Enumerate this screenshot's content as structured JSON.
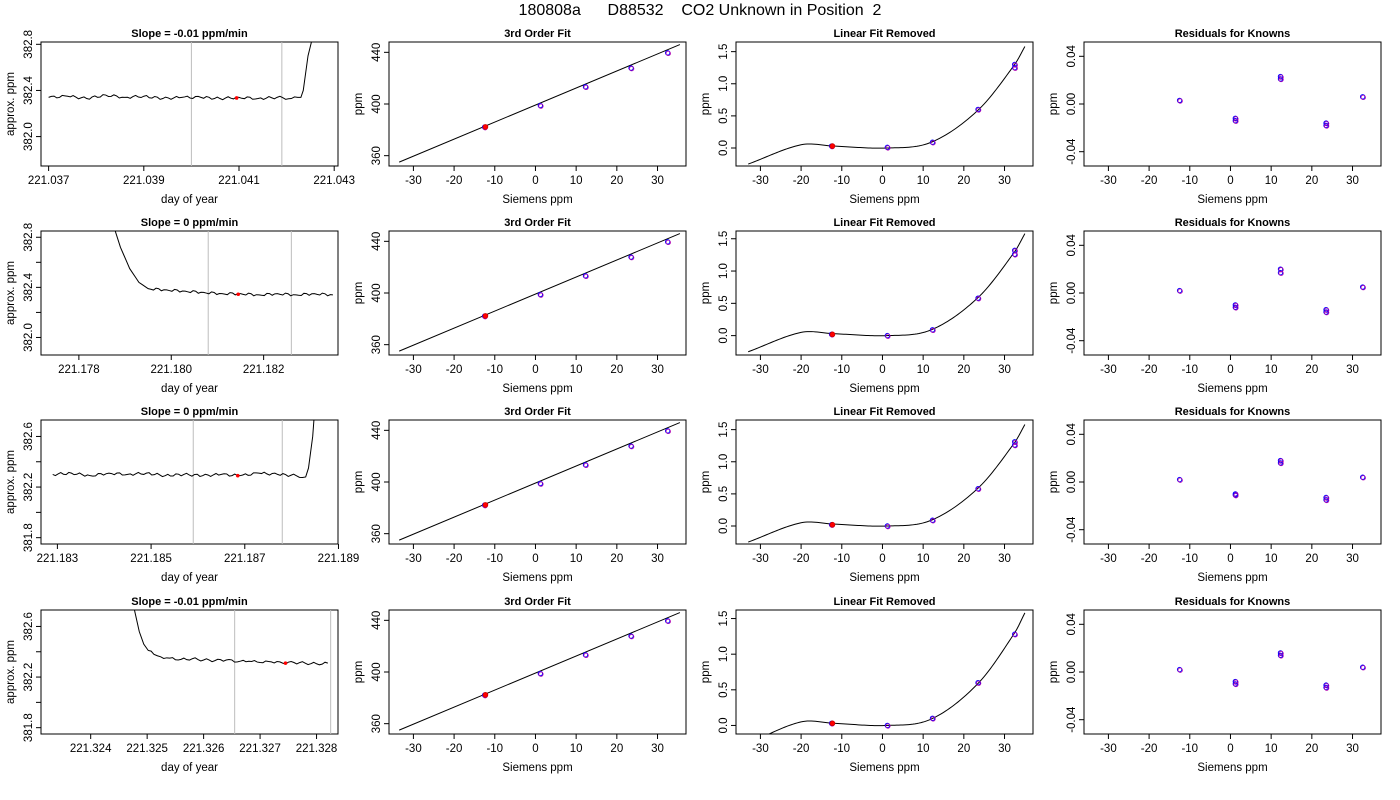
{
  "figure": {
    "title": "180808a      D88532    CO2 Unknown in Position  2"
  },
  "chart_data": [
    {
      "type": "line",
      "panel": "trace",
      "row": 1,
      "title": "Slope =  -0.01  ppm/min",
      "xlabel": "day of year",
      "ylabel": "approx. ppm",
      "xlim": [
        221.03684,
        221.04308
      ],
      "ylim": [
        381.745,
        382.82
      ],
      "xticks": [
        221.037,
        221.039,
        221.041,
        221.043
      ],
      "yticks": [
        382.0,
        382.4,
        382.8
      ],
      "series": [
        {
          "role": "trace",
          "x": [
            221.037,
            221.0374,
            221.0378,
            221.0382,
            221.0386,
            221.039,
            221.0394,
            221.0398,
            221.0402,
            221.0406,
            221.041,
            221.0414,
            221.0418,
            221.0421,
            221.0423,
            221.04235,
            221.04245,
            221.0426
          ],
          "y": [
            382.34,
            382.35,
            382.33,
            382.36,
            382.34,
            382.35,
            382.33,
            382.34,
            382.34,
            382.33,
            382.34,
            382.33,
            382.34,
            382.33,
            382.34,
            382.4,
            382.7,
            382.95
          ]
        }
      ],
      "markers": [
        {
          "x": 221.04095,
          "y": 382.335
        }
      ],
      "vlines": [
        221.04,
        221.0419
      ]
    },
    {
      "type": "scatter",
      "panel": "fit",
      "row": 1,
      "title": "3rd Order Fit",
      "xlabel": "Siemens ppm",
      "ylabel": "ppm",
      "xlim": [
        -36,
        37
      ],
      "ylim": [
        352,
        448
      ],
      "xticks": [
        -30,
        -20,
        -10,
        0,
        10,
        20,
        30
      ],
      "yticks": [
        360,
        400,
        440
      ],
      "series": [
        {
          "role": "fit-line",
          "x": [
            -33.5,
            35.5
          ],
          "y": [
            355,
            446
          ]
        },
        {
          "role": "knowns",
          "x": [
            -12.5,
            1.2,
            12.3,
            23.5,
            32.5
          ],
          "y": [
            382.1,
            398.8,
            413.3,
            427.8,
            439.6
          ]
        },
        {
          "role": "unknown",
          "x": [
            -12.3
          ],
          "y": [
            382.3
          ]
        }
      ]
    },
    {
      "type": "scatter",
      "panel": "linear-removed",
      "row": 1,
      "title": "Linear Fit Removed",
      "xlabel": "Siemens ppm",
      "ylabel": "ppm",
      "xlim": [
        -36,
        37
      ],
      "ylim": [
        -0.28,
        1.65
      ],
      "xticks": [
        -30,
        -20,
        -10,
        0,
        10,
        20,
        30
      ],
      "yticks": [
        0.0,
        0.5,
        1.0,
        1.5
      ],
      "curve": {
        "x0": -33,
        "x1": 35
      },
      "series": [
        {
          "role": "knowns",
          "x": [
            -12.5,
            1.2,
            12.3,
            23.5,
            32.5,
            32.5
          ],
          "y": [
            0.03,
            0.01,
            0.09,
            0.6,
            1.3,
            1.25
          ]
        },
        {
          "role": "unknown",
          "x": [
            -12.3
          ],
          "y": [
            0.03
          ]
        }
      ]
    },
    {
      "type": "scatter",
      "panel": "residuals",
      "row": 1,
      "title": "Residuals for Knowns",
      "xlabel": "Siemens ppm",
      "ylabel": "ppm",
      "xlim": [
        -36,
        37
      ],
      "ylim": [
        -0.052,
        0.052
      ],
      "xticks": [
        -30,
        -20,
        -10,
        0,
        10,
        20,
        30
      ],
      "yticks": [
        -0.04,
        0.0,
        0.04
      ],
      "series": [
        {
          "role": "knowns",
          "x": [
            -12.5,
            1.2,
            1.2,
            12.3,
            12.3,
            23.5,
            23.5,
            32.5
          ],
          "y": [
            0.003,
            -0.012,
            -0.014,
            0.023,
            0.021,
            -0.016,
            -0.018,
            0.006
          ]
        }
      ]
    },
    {
      "type": "line",
      "panel": "trace",
      "row": 2,
      "title": "Slope =  0  ppm/min",
      "xlabel": "day of year",
      "ylabel": "approx. ppm",
      "xlim": [
        221.17718,
        221.18361
      ],
      "ylim": [
        381.86,
        382.85
      ],
      "xticks": [
        221.178,
        221.18,
        221.182
      ],
      "ytick_labels_shown": [
        382.0,
        382.4,
        382.8
      ],
      "yticks": [
        382.0,
        382.2,
        382.4,
        382.6,
        382.8
      ],
      "series": [
        {
          "role": "trace",
          "x": [
            221.1787,
            221.1789,
            221.1791,
            221.1793,
            221.1795,
            221.1799,
            221.1803,
            221.1807,
            221.1811,
            221.1815,
            221.1819,
            221.1823,
            221.1827,
            221.1831,
            221.1835
          ],
          "y": [
            382.95,
            382.72,
            382.55,
            382.44,
            382.39,
            382.38,
            382.37,
            382.36,
            382.35,
            382.35,
            382.34,
            382.35,
            382.34,
            382.35,
            382.34
          ]
        }
      ],
      "markers": [
        {
          "x": 221.18145,
          "y": 382.345
        }
      ],
      "vlines": [
        221.1808,
        221.1826
      ]
    },
    {
      "type": "scatter",
      "panel": "fit",
      "row": 2,
      "title": "3rd Order Fit",
      "xlabel": "Siemens ppm",
      "ylabel": "ppm",
      "xlim": [
        -36,
        37
      ],
      "ylim": [
        352,
        448
      ],
      "xticks": [
        -30,
        -20,
        -10,
        0,
        10,
        20,
        30
      ],
      "yticks": [
        360,
        400,
        440
      ],
      "series": [
        {
          "role": "fit-line",
          "x": [
            -33.5,
            35.5
          ],
          "y": [
            355,
            446
          ]
        },
        {
          "role": "knowns",
          "x": [
            -12.5,
            1.2,
            12.3,
            23.5,
            32.5
          ],
          "y": [
            382.1,
            398.8,
            413.3,
            427.8,
            439.6
          ]
        },
        {
          "role": "unknown",
          "x": [
            -12.3
          ],
          "y": [
            382.3
          ]
        }
      ]
    },
    {
      "type": "scatter",
      "panel": "linear-removed",
      "row": 2,
      "title": "Linear Fit Removed",
      "xlabel": "Siemens ppm",
      "ylabel": "ppm",
      "xlim": [
        -36,
        37
      ],
      "ylim": [
        -0.3,
        1.62
      ],
      "xticks": [
        -30,
        -20,
        -10,
        0,
        10,
        20,
        30
      ],
      "yticks": [
        0.0,
        0.5,
        1.0,
        1.5
      ],
      "curve": {
        "x0": -33,
        "x1": 35
      },
      "series": [
        {
          "role": "knowns",
          "x": [
            -12.5,
            1.2,
            12.3,
            23.5,
            32.5,
            32.5
          ],
          "y": [
            0.02,
            0.0,
            0.09,
            0.58,
            1.32,
            1.26
          ]
        },
        {
          "role": "unknown",
          "x": [
            -12.3
          ],
          "y": [
            0.02
          ]
        }
      ]
    },
    {
      "type": "scatter",
      "panel": "residuals",
      "row": 2,
      "title": "Residuals for Knowns",
      "xlabel": "Siemens ppm",
      "ylabel": "ppm",
      "xlim": [
        -36,
        37
      ],
      "ylim": [
        -0.052,
        0.052
      ],
      "xticks": [
        -30,
        -20,
        -10,
        0,
        10,
        20,
        30
      ],
      "yticks": [
        -0.04,
        0.0,
        0.04
      ],
      "series": [
        {
          "role": "knowns",
          "x": [
            -12.5,
            1.2,
            1.2,
            12.3,
            12.3,
            23.5,
            23.5,
            32.5
          ],
          "y": [
            0.002,
            -0.01,
            -0.012,
            0.02,
            0.017,
            -0.014,
            -0.016,
            0.005
          ]
        }
      ]
    },
    {
      "type": "line",
      "panel": "trace",
      "row": 3,
      "title": "Slope =  0  ppm/min",
      "xlabel": "day of year",
      "ylabel": "approx. ppm",
      "xlim": [
        221.18265,
        221.18899
      ],
      "ylim": [
        381.75,
        382.73
      ],
      "xticks": [
        221.183,
        221.185,
        221.187,
        221.189
      ],
      "ytick_labels_shown": [
        381.8,
        382.2,
        382.6
      ],
      "yticks": [
        381.8,
        382.0,
        382.2,
        382.4,
        382.6
      ],
      "series": [
        {
          "role": "trace",
          "x": [
            221.1829,
            221.1833,
            221.1837,
            221.1841,
            221.1845,
            221.1849,
            221.1853,
            221.1857,
            221.1861,
            221.1865,
            221.1869,
            221.1873,
            221.1877,
            221.1881,
            221.1883,
            221.18836,
            221.18845,
            221.1885
          ],
          "y": [
            382.3,
            382.31,
            382.29,
            382.31,
            382.3,
            382.31,
            382.29,
            382.3,
            382.29,
            382.3,
            382.29,
            382.31,
            382.3,
            382.29,
            382.28,
            382.35,
            382.6,
            382.85
          ]
        }
      ],
      "markers": [
        {
          "x": 221.18685,
          "y": 382.29
        }
      ],
      "vlines": [
        221.1859,
        221.1878
      ]
    },
    {
      "type": "scatter",
      "panel": "fit",
      "row": 3,
      "title": "3rd Order Fit",
      "xlabel": "Siemens ppm",
      "ylabel": "ppm",
      "xlim": [
        -36,
        37
      ],
      "ylim": [
        352,
        448
      ],
      "xticks": [
        -30,
        -20,
        -10,
        0,
        10,
        20,
        30
      ],
      "yticks": [
        360,
        400,
        440
      ],
      "series": [
        {
          "role": "fit-line",
          "x": [
            -33.5,
            35.5
          ],
          "y": [
            355,
            446
          ]
        },
        {
          "role": "knowns",
          "x": [
            -12.5,
            1.2,
            12.3,
            23.5,
            32.5
          ],
          "y": [
            382.1,
            398.8,
            413.3,
            427.8,
            439.6
          ]
        },
        {
          "role": "unknown",
          "x": [
            -12.3
          ],
          "y": [
            382.3
          ]
        }
      ]
    },
    {
      "type": "scatter",
      "panel": "linear-removed",
      "row": 3,
      "title": "Linear Fit Removed",
      "xlabel": "Siemens ppm",
      "ylabel": "ppm",
      "xlim": [
        -36,
        37
      ],
      "ylim": [
        -0.28,
        1.65
      ],
      "xticks": [
        -30,
        -20,
        -10,
        0,
        10,
        20,
        30
      ],
      "yticks": [
        0.0,
        0.5,
        1.0,
        1.5
      ],
      "curve": {
        "x0": -33,
        "x1": 35
      },
      "series": [
        {
          "role": "knowns",
          "x": [
            -12.5,
            1.2,
            12.3,
            23.5,
            32.5,
            32.5
          ],
          "y": [
            0.02,
            0.0,
            0.09,
            0.58,
            1.31,
            1.26
          ]
        },
        {
          "role": "unknown",
          "x": [
            -12.3
          ],
          "y": [
            0.02
          ]
        }
      ]
    },
    {
      "type": "scatter",
      "panel": "residuals",
      "row": 3,
      "title": "Residuals for Knowns",
      "xlabel": "Siemens ppm",
      "ylabel": "ppm",
      "xlim": [
        -36,
        37
      ],
      "ylim": [
        -0.052,
        0.052
      ],
      "xticks": [
        -30,
        -20,
        -10,
        0,
        10,
        20,
        30
      ],
      "yticks": [
        -0.04,
        0.0,
        0.04
      ],
      "series": [
        {
          "role": "knowns",
          "x": [
            -12.5,
            1.2,
            1.2,
            12.3,
            12.3,
            23.5,
            23.5,
            32.5
          ],
          "y": [
            0.002,
            -0.01,
            -0.011,
            0.018,
            0.016,
            -0.013,
            -0.015,
            0.004
          ]
        }
      ]
    },
    {
      "type": "line",
      "panel": "trace",
      "row": 4,
      "title": "Slope =  -0.01  ppm/min",
      "xlabel": "day of year",
      "ylabel": "approx. ppm",
      "xlim": [
        221.32312,
        221.32838
      ],
      "ylim": [
        381.75,
        382.73
      ],
      "xticks": [
        221.324,
        221.325,
        221.326,
        221.327,
        221.328
      ],
      "ytick_labels_shown": [
        381.8,
        382.2,
        382.6
      ],
      "yticks": [
        381.8,
        382.0,
        382.2,
        382.4,
        382.6
      ],
      "series": [
        {
          "role": "trace",
          "x": [
            221.3247,
            221.32478,
            221.32486,
            221.32494,
            221.32502,
            221.32512,
            221.32524,
            221.3254,
            221.3256,
            221.3258,
            221.326,
            221.3262,
            221.3264,
            221.3266,
            221.3268,
            221.327,
            221.3272,
            221.3274,
            221.3276,
            221.3278,
            221.328,
            221.3282
          ],
          "y": [
            382.95,
            382.72,
            382.56,
            382.46,
            382.41,
            382.38,
            382.36,
            382.35,
            382.34,
            382.345,
            382.335,
            382.33,
            382.335,
            382.32,
            382.325,
            382.315,
            382.32,
            382.31,
            382.315,
            382.31,
            382.305,
            382.31
          ]
        }
      ],
      "markers": [
        {
          "x": 221.32745,
          "y": 382.31
        }
      ],
      "vlines": [
        221.32655,
        221.32825
      ]
    },
    {
      "type": "scatter",
      "panel": "fit",
      "row": 4,
      "title": "3rd Order Fit",
      "xlabel": "Siemens ppm",
      "ylabel": "ppm",
      "xlim": [
        -36,
        37
      ],
      "ylim": [
        352,
        448
      ],
      "xticks": [
        -30,
        -20,
        -10,
        0,
        10,
        20,
        30
      ],
      "yticks": [
        360,
        400,
        440
      ],
      "series": [
        {
          "role": "fit-line",
          "x": [
            -33.5,
            35.5
          ],
          "y": [
            355,
            446
          ]
        },
        {
          "role": "knowns",
          "x": [
            -12.5,
            1.2,
            12.3,
            23.5,
            32.5
          ],
          "y": [
            382.1,
            398.8,
            413.3,
            427.8,
            439.6
          ]
        },
        {
          "role": "unknown",
          "x": [
            -12.3
          ],
          "y": [
            382.3
          ]
        }
      ]
    },
    {
      "type": "scatter",
      "panel": "linear-removed",
      "row": 4,
      "title": "Linear Fit Removed",
      "xlabel": "Siemens ppm",
      "ylabel": "ppm",
      "xlim": [
        -36,
        37
      ],
      "ylim": [
        -0.12,
        1.62
      ],
      "xticks": [
        -30,
        -20,
        -10,
        0,
        10,
        20,
        30
      ],
      "yticks": [
        0.0,
        0.5,
        1.0,
        1.5
      ],
      "curve": {
        "x0": -33,
        "x1": 35
      },
      "series": [
        {
          "role": "knowns",
          "x": [
            -12.5,
            1.2,
            12.3,
            23.5,
            32.5
          ],
          "y": [
            0.03,
            0.0,
            0.1,
            0.6,
            1.28
          ]
        },
        {
          "role": "unknown",
          "x": [
            -12.3
          ],
          "y": [
            0.03
          ]
        }
      ]
    },
    {
      "type": "scatter",
      "panel": "residuals",
      "row": 4,
      "title": "Residuals for Knowns",
      "xlabel": "Siemens ppm",
      "ylabel": "ppm",
      "xlim": [
        -36,
        37
      ],
      "ylim": [
        -0.052,
        0.052
      ],
      "xticks": [
        -30,
        -20,
        -10,
        0,
        10,
        20,
        30
      ],
      "yticks": [
        -0.04,
        0.0,
        0.04
      ],
      "series": [
        {
          "role": "knowns",
          "x": [
            -12.5,
            1.2,
            1.2,
            12.3,
            12.3,
            23.5,
            23.5,
            32.5
          ],
          "y": [
            0.002,
            -0.008,
            -0.01,
            0.016,
            0.014,
            -0.011,
            -0.013,
            0.004
          ]
        }
      ]
    }
  ]
}
